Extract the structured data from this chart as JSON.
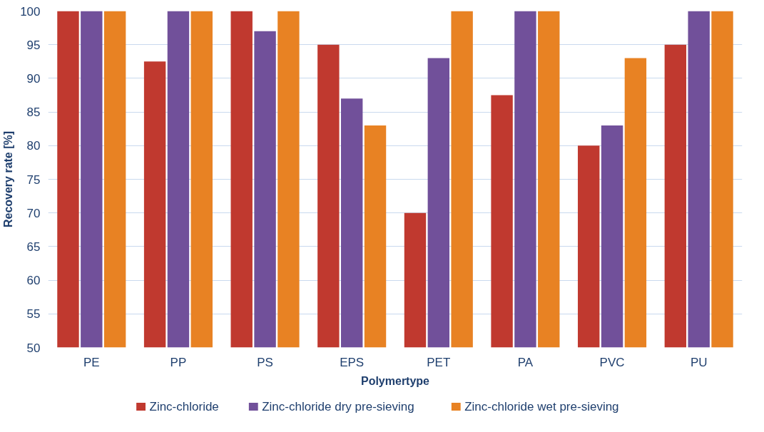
{
  "chart_data": {
    "type": "bar",
    "xlabel": "Polymertype",
    "ylabel": "Recovery rate [%]",
    "categories": [
      "PE",
      "PP",
      "PS",
      "EPS",
      "PET",
      "PA",
      "PVC",
      "PU"
    ],
    "series": [
      {
        "name": "Zinc-chloride",
        "color": "#c0392f",
        "values": [
          100,
          92.5,
          100,
          95,
          70,
          87.5,
          80,
          95
        ]
      },
      {
        "name": "Zinc-chloride dry pre-sieving",
        "color": "#71509a",
        "values": [
          100,
          100,
          97,
          87,
          93,
          100,
          83,
          100
        ]
      },
      {
        "name": "Zinc-chloride wet pre-sieving",
        "color": "#e88223",
        "values": [
          100,
          100,
          100,
          83,
          100,
          100,
          93,
          100
        ]
      }
    ],
    "ylim": [
      50,
      100
    ],
    "yticks": [
      50,
      55,
      60,
      65,
      70,
      75,
      80,
      85,
      90,
      95,
      100
    ],
    "grid": "y",
    "legend": "bottom"
  }
}
